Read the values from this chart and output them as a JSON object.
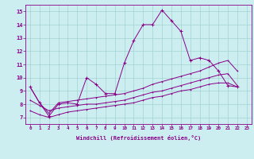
{
  "xlabel": "Windchill (Refroidissement éolien,°C)",
  "bg_color": "#cceef0",
  "line_color": "#880088",
  "grid_color": "#99cccc",
  "xlim": [
    -0.5,
    23.5
  ],
  "ylim": [
    6.5,
    15.5
  ],
  "xticks": [
    0,
    1,
    2,
    3,
    4,
    5,
    6,
    7,
    8,
    9,
    10,
    11,
    12,
    13,
    14,
    15,
    16,
    17,
    18,
    19,
    20,
    21,
    22,
    23
  ],
  "yticks": [
    7,
    8,
    9,
    10,
    11,
    12,
    13,
    14,
    15
  ],
  "series": [
    {
      "x": [
        0,
        1,
        2,
        3,
        4,
        5,
        6,
        7,
        8,
        9,
        10,
        11,
        12,
        13,
        14,
        15,
        16,
        17,
        18,
        19,
        20,
        21,
        22
      ],
      "y": [
        9.3,
        8.1,
        7.1,
        8.0,
        8.1,
        8.0,
        10.0,
        9.5,
        8.8,
        8.8,
        11.1,
        12.8,
        14.0,
        14.0,
        15.1,
        14.3,
        13.5,
        11.3,
        11.5,
        11.3,
        10.5,
        9.4,
        9.3
      ]
    },
    {
      "x": [
        0,
        1,
        2,
        3,
        4,
        5,
        6,
        7,
        8,
        9,
        10,
        11,
        12,
        13,
        14,
        15,
        16,
        17,
        18,
        19,
        20,
        21,
        22
      ],
      "y": [
        9.3,
        8.1,
        7.3,
        8.1,
        8.2,
        8.3,
        8.4,
        8.5,
        8.6,
        8.7,
        8.8,
        9.0,
        9.2,
        9.5,
        9.7,
        9.9,
        10.1,
        10.3,
        10.5,
        10.8,
        11.1,
        11.3,
        10.5
      ]
    },
    {
      "x": [
        0,
        1,
        2,
        3,
        4,
        5,
        6,
        7,
        8,
        9,
        10,
        11,
        12,
        13,
        14,
        15,
        16,
        17,
        18,
        19,
        20,
        21,
        22
      ],
      "y": [
        8.3,
        7.9,
        7.5,
        7.7,
        7.8,
        7.9,
        8.0,
        8.0,
        8.1,
        8.2,
        8.3,
        8.5,
        8.7,
        8.9,
        9.0,
        9.2,
        9.4,
        9.6,
        9.8,
        10.0,
        10.2,
        10.3,
        9.4
      ]
    },
    {
      "x": [
        0,
        1,
        2,
        3,
        4,
        5,
        6,
        7,
        8,
        9,
        10,
        11,
        12,
        13,
        14,
        15,
        16,
        17,
        18,
        19,
        20,
        21,
        22
      ],
      "y": [
        7.5,
        7.2,
        7.0,
        7.2,
        7.4,
        7.5,
        7.6,
        7.7,
        7.8,
        7.9,
        8.0,
        8.1,
        8.3,
        8.5,
        8.6,
        8.8,
        9.0,
        9.1,
        9.3,
        9.5,
        9.6,
        9.6,
        9.3
      ]
    }
  ]
}
